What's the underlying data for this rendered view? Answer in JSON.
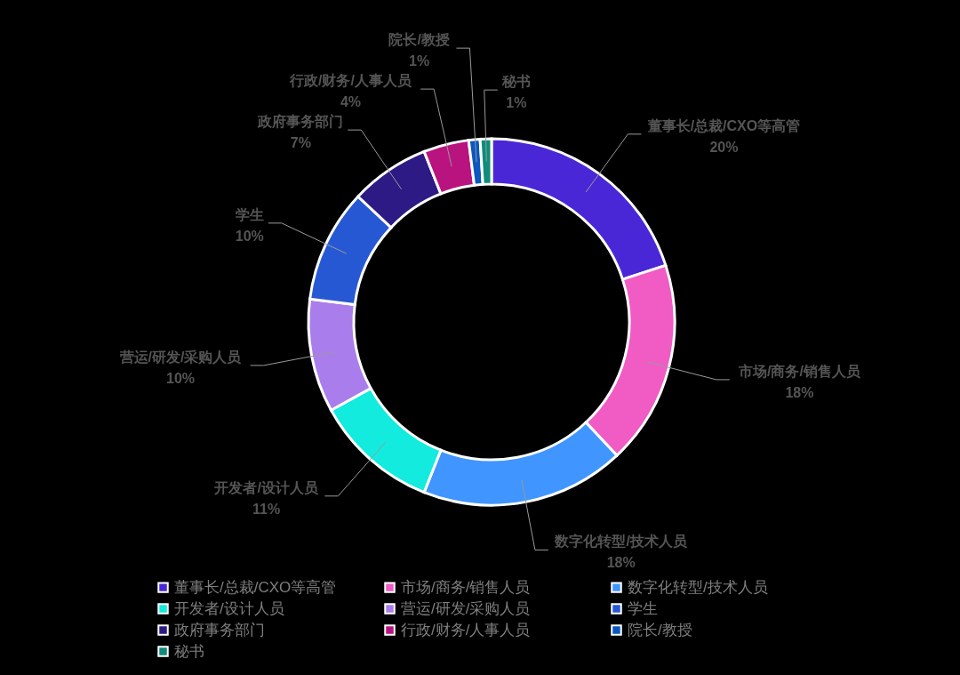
{
  "chart_data": {
    "type": "donut",
    "categories": [
      "董事长/总裁/CXO等高管",
      "市场/商务/销售人员",
      "数字化转型/技术人员",
      "开发者/设计人员",
      "营运/研发/采购人员",
      "学生",
      "政府事务部门",
      "行政/财务/人事人员",
      "院长/教授",
      "秘书"
    ],
    "values": [
      20,
      18,
      18,
      11,
      10,
      10,
      7,
      4,
      1,
      1
    ],
    "colors": [
      "#4a27d6",
      "#f05bc4",
      "#4095ff",
      "#12ebdd",
      "#aa7dec",
      "#2758d4",
      "#2d1a85",
      "#b8137f",
      "#0b57c0",
      "#0f8c7c"
    ],
    "value_labels": [
      "20%",
      "18%",
      "18%",
      "11%",
      "10%",
      "10%",
      "7%",
      "4%",
      "1%",
      "1%"
    ],
    "legend": "bottom"
  }
}
